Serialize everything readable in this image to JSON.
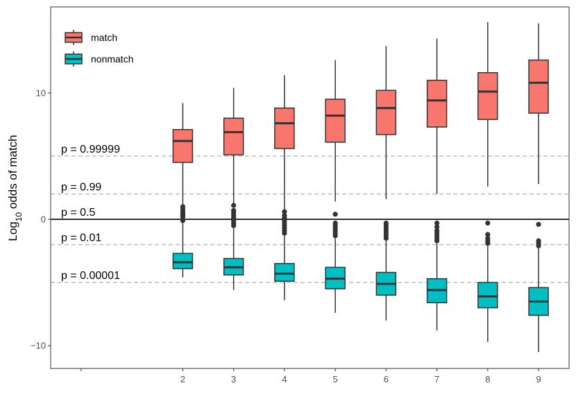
{
  "chart_data": {
    "type": "box",
    "ylabel_main": "Log",
    "ylabel_sub": "10",
    "ylabel_rest": " odds of match",
    "xlabel": "",
    "ylim": [
      -11.8,
      16.8
    ],
    "xlim": [
      -0.6,
      9.6
    ],
    "y_ticks": [
      10,
      0,
      -10
    ],
    "y_tick_labels": [
      "10",
      "0",
      "−10"
    ],
    "x_ticks": [
      0,
      2,
      3,
      4,
      5,
      6,
      7,
      8,
      9
    ],
    "x_tick_labels": [
      "",
      "2",
      "3",
      "4",
      "5",
      "6",
      "7",
      "8",
      "9"
    ],
    "grid": false,
    "legend": {
      "position": "top-left"
    },
    "zero_line": 0,
    "reference_lines": [
      {
        "y": 5,
        "label": "p = 0.99999"
      },
      {
        "y": 2,
        "label": "p = 0.99"
      },
      {
        "y": 0,
        "label": "p = 0.5"
      },
      {
        "y": -2,
        "label": "p = 0.01"
      },
      {
        "y": -5,
        "label": "p = 0.00001"
      }
    ],
    "series": [
      {
        "name": "match",
        "color": "#F8766D",
        "boxes": [
          {
            "x": 2,
            "low": 0.6,
            "q1": 4.5,
            "median": 6.2,
            "q3": 7.1,
            "high": 9.2
          },
          {
            "x": 3,
            "low": 0.9,
            "q1": 5.1,
            "median": 6.9,
            "q3": 8.0,
            "high": 10.4
          },
          {
            "x": 4,
            "low": 0.7,
            "q1": 5.6,
            "median": 7.6,
            "q3": 8.8,
            "high": 11.4
          },
          {
            "x": 5,
            "low": 1.4,
            "q1": 6.1,
            "median": 8.2,
            "q3": 9.5,
            "high": 12.6
          },
          {
            "x": 6,
            "low": 1.6,
            "q1": 6.7,
            "median": 8.8,
            "q3": 10.2,
            "high": 13.7
          },
          {
            "x": 7,
            "low": 2.0,
            "q1": 7.3,
            "median": 9.4,
            "q3": 11.0,
            "high": 14.3
          },
          {
            "x": 8,
            "low": 2.6,
            "q1": 7.9,
            "median": 10.1,
            "q3": 11.6,
            "high": 15.6
          },
          {
            "x": 9,
            "low": 2.8,
            "q1": 8.4,
            "median": 10.8,
            "q3": 12.6,
            "high": 15.5
          }
        ]
      },
      {
        "name": "nonmatch",
        "color": "#00BFC4",
        "boxes": [
          {
            "x": 2,
            "low": -4.6,
            "q1": -3.9,
            "median": -3.4,
            "q3": -2.7,
            "high": -0.2,
            "outliers": [
              0.0,
              0.2,
              0.4,
              0.6,
              0.8,
              1.0,
              -0.1,
              0.3,
              0.5
            ]
          },
          {
            "x": 3,
            "low": -5.6,
            "q1": -4.4,
            "median": -3.8,
            "q3": -3.1,
            "high": -0.7,
            "outliers": [
              -0.5,
              -0.3,
              -0.1,
              0.1,
              0.3,
              0.5,
              0.7,
              1.1
            ]
          },
          {
            "x": 4,
            "low": -6.4,
            "q1": -4.9,
            "median": -4.3,
            "q3": -3.5,
            "high": -1.3,
            "outliers": [
              -1.1,
              -0.9,
              -0.7,
              -0.5,
              -0.3,
              -0.1,
              0.1,
              0.3,
              0.6
            ]
          },
          {
            "x": 5,
            "low": -7.4,
            "q1": -5.5,
            "median": -4.7,
            "q3": -3.8,
            "high": -1.5,
            "outliers": [
              -1.3,
              -1.1,
              -0.9,
              -0.7,
              -0.5,
              -0.3,
              0.4
            ]
          },
          {
            "x": 6,
            "low": -8.0,
            "q1": -6.0,
            "median": -5.1,
            "q3": -4.2,
            "high": -1.7,
            "outliers": [
              -1.5,
              -1.3,
              -1.1,
              -0.9,
              -0.7,
              -0.5,
              -0.3
            ]
          },
          {
            "x": 7,
            "low": -8.8,
            "q1": -6.6,
            "median": -5.6,
            "q3": -4.7,
            "high": -1.9,
            "outliers": [
              -1.7,
              -1.5,
              -1.3,
              -1.1,
              -0.9,
              -0.6,
              -0.3
            ]
          },
          {
            "x": 8,
            "low": -9.7,
            "q1": -7.0,
            "median": -6.1,
            "q3": -5.0,
            "high": -2.1,
            "outliers": [
              -1.9,
              -1.7,
              -1.5,
              -1.2,
              -0.3
            ]
          },
          {
            "x": 9,
            "low": -10.5,
            "q1": -7.6,
            "median": -6.5,
            "q3": -5.4,
            "high": -2.3,
            "outliers": [
              -2.1,
              -1.9,
              -1.7,
              -0.4
            ]
          }
        ]
      }
    ]
  }
}
